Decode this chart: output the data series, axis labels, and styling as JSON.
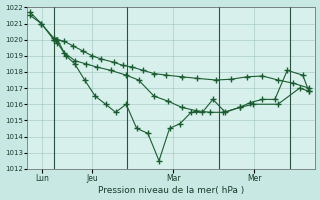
{
  "background_color": "#c8e8e4",
  "plot_bg_color": "#d8f0ec",
  "grid_color": "#a0c4c0",
  "line_color": "#1a5c30",
  "xlabel": "Pression niveau de la mer( hPa )",
  "ylim": [
    1012,
    1022
  ],
  "yticks": [
    1012,
    1013,
    1014,
    1015,
    1016,
    1017,
    1018,
    1019,
    1020,
    1021,
    1022
  ],
  "series1_x": [
    0.0,
    0.18,
    0.38,
    0.42,
    0.44,
    0.55,
    0.7,
    0.85,
    1.0,
    1.15,
    1.35,
    1.5,
    1.65,
    1.82,
    2.0,
    2.2,
    2.45,
    2.7,
    3.0,
    3.25,
    3.5,
    3.75,
    4.0,
    4.25,
    4.5
  ],
  "series1_y": [
    1021.7,
    1021.0,
    1020.1,
    1020.0,
    1020.0,
    1019.9,
    1019.6,
    1019.3,
    1019.0,
    1018.8,
    1018.6,
    1018.4,
    1018.3,
    1018.1,
    1017.9,
    1017.8,
    1017.7,
    1017.6,
    1017.5,
    1017.55,
    1017.7,
    1017.75,
    1017.5,
    1017.3,
    1017.0
  ],
  "series2_x": [
    0.0,
    0.18,
    0.38,
    0.44,
    0.58,
    0.72,
    0.88,
    1.05,
    1.22,
    1.38,
    1.55,
    1.72,
    1.9,
    2.08,
    2.25,
    2.42,
    2.6,
    2.78,
    2.95,
    3.15,
    3.38,
    3.55,
    3.75,
    3.95,
    4.15,
    4.4,
    4.5
  ],
  "series2_y": [
    1021.5,
    1021.0,
    1020.0,
    1019.8,
    1019.0,
    1018.5,
    1017.5,
    1016.5,
    1016.0,
    1015.5,
    1016.0,
    1014.5,
    1014.2,
    1012.5,
    1014.5,
    1014.8,
    1015.5,
    1015.5,
    1016.3,
    1015.5,
    1015.8,
    1016.1,
    1016.3,
    1016.3,
    1018.1,
    1017.8,
    1016.8
  ],
  "series3_x": [
    0.38,
    0.44,
    0.55,
    0.72,
    0.9,
    1.08,
    1.3,
    1.55,
    1.75,
    2.0,
    2.22,
    2.45,
    2.68,
    2.9,
    3.12,
    3.38,
    3.6,
    4.0,
    4.35,
    4.5
  ],
  "series3_y": [
    1020.0,
    1020.0,
    1019.2,
    1018.7,
    1018.5,
    1018.3,
    1018.1,
    1017.8,
    1017.5,
    1016.5,
    1016.2,
    1015.8,
    1015.6,
    1015.5,
    1015.5,
    1015.8,
    1016.0,
    1016.0,
    1017.0,
    1016.8
  ],
  "vline_x": [
    0.38,
    1.57,
    3.05,
    4.2
  ],
  "xtick_labels": [
    "Lun",
    "Jeu",
    "Mar",
    "Mer"
  ],
  "xtick_x": [
    0.19,
    1.0,
    2.31,
    3.62
  ]
}
